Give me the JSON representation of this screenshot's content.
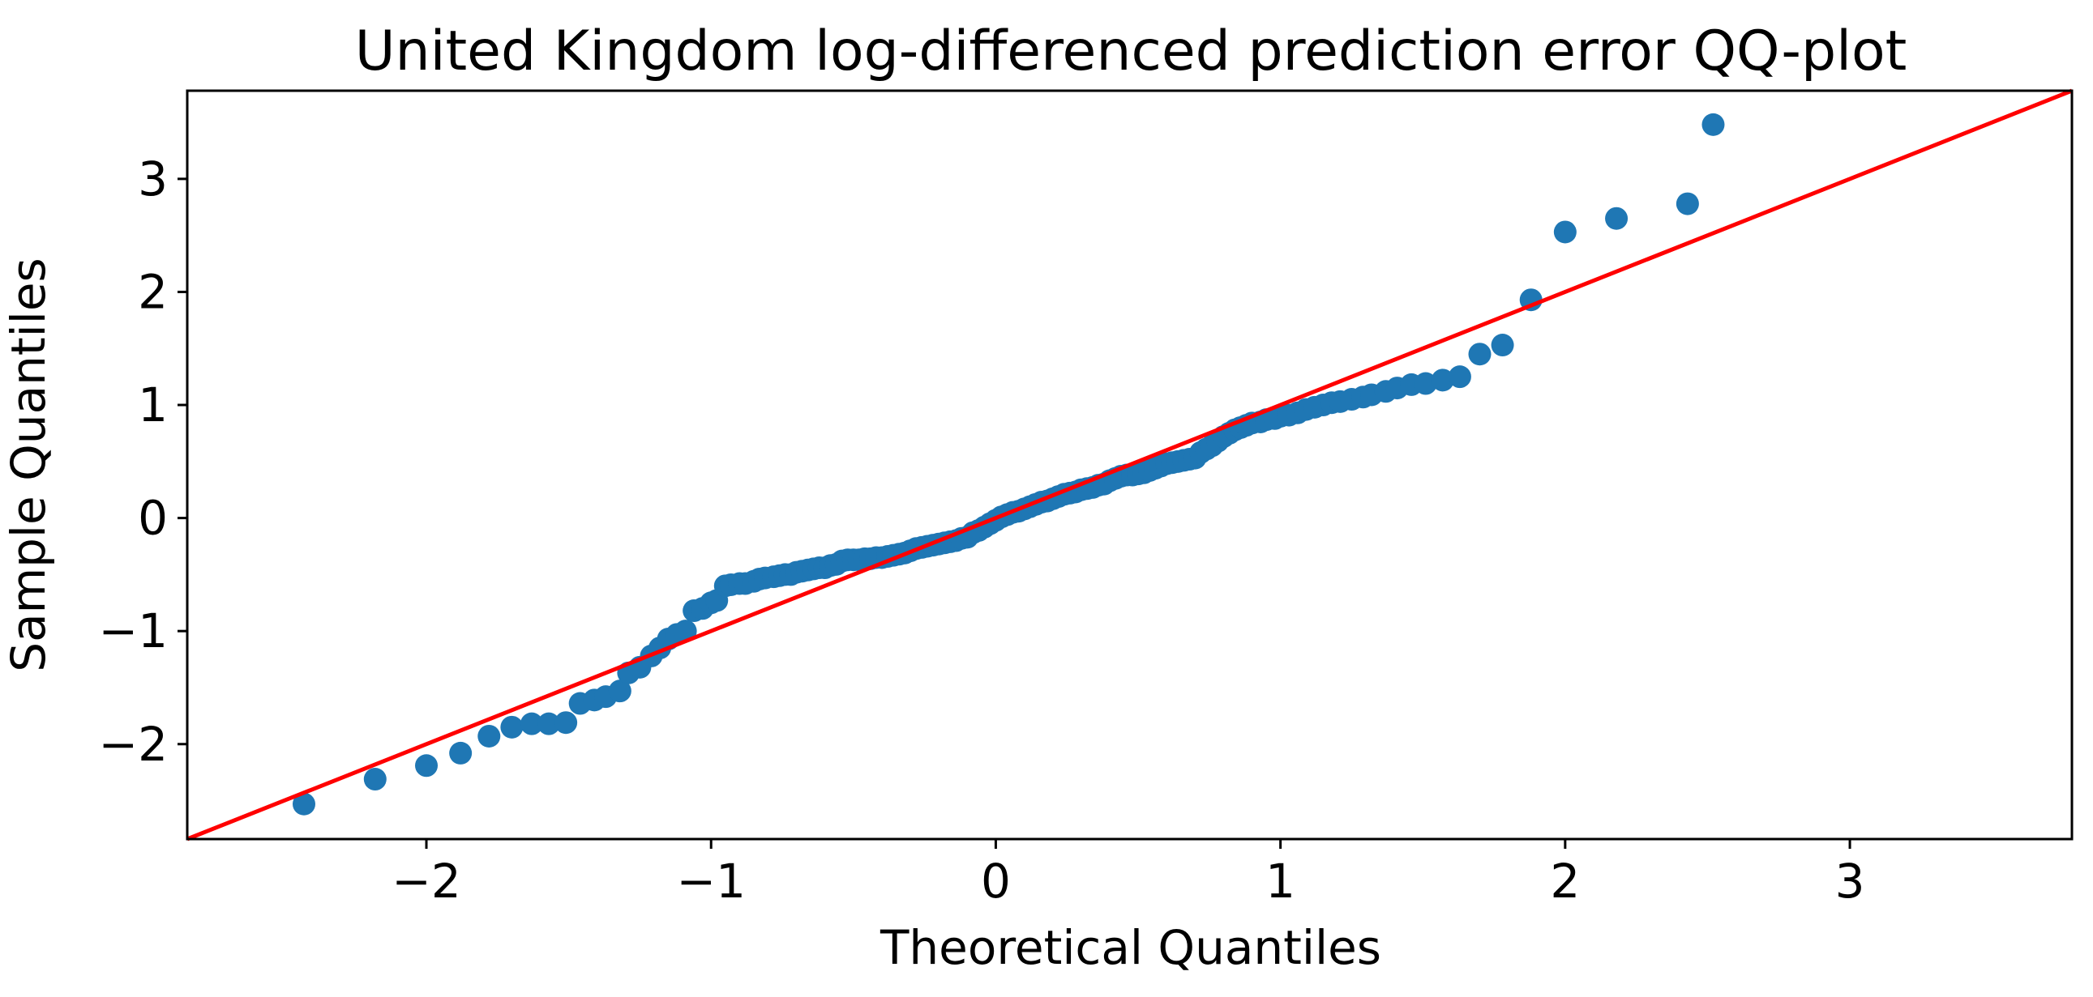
{
  "chart_data": {
    "type": "scatter",
    "title": "United Kingdom log-differenced prediction error QQ-plot",
    "xlabel": "Theoretical Quantiles",
    "ylabel": "Sample Quantiles",
    "xlim": [
      -2.84,
      3.78
    ],
    "ylim": [
      -2.84,
      3.78
    ],
    "xticks": [
      -2,
      -1,
      0,
      1,
      2,
      3
    ],
    "yticks": [
      -2,
      -1,
      0,
      1,
      2,
      3
    ],
    "xtick_labels": [
      "−2",
      "−1",
      "0",
      "1",
      "2",
      "3"
    ],
    "ytick_labels": [
      "−2",
      "−1",
      "0",
      "1",
      "2",
      "3"
    ],
    "grid": false,
    "colors": {
      "points": "#1f77b4",
      "reference_line": "#ff0000",
      "axes": "#000000"
    },
    "reference_line": {
      "slope": 1,
      "intercept": 0
    },
    "points": [
      [
        -2.43,
        -2.53
      ],
      [
        -2.18,
        -2.31
      ],
      [
        -2.0,
        -2.19
      ],
      [
        -1.88,
        -2.08
      ],
      [
        -1.78,
        -1.93
      ],
      [
        -1.7,
        -1.85
      ],
      [
        -1.63,
        -1.82
      ],
      [
        -1.57,
        -1.82
      ],
      [
        -1.51,
        -1.81
      ],
      [
        -1.46,
        -1.64
      ],
      [
        -1.41,
        -1.61
      ],
      [
        -1.37,
        -1.58
      ],
      [
        -1.32,
        -1.53
      ],
      [
        -1.29,
        -1.37
      ],
      [
        -1.25,
        -1.32
      ],
      [
        -1.21,
        -1.22
      ],
      [
        -1.18,
        -1.15
      ],
      [
        -1.15,
        -1.07
      ],
      [
        -1.12,
        -1.03
      ],
      [
        -1.09,
        -1.0
      ],
      [
        -1.06,
        -0.82
      ],
      [
        -1.03,
        -0.8
      ],
      [
        -1.0,
        -0.75
      ],
      [
        -0.98,
        -0.73
      ],
      [
        -0.95,
        -0.6
      ],
      [
        -0.93,
        -0.59
      ],
      [
        -0.9,
        -0.58
      ],
      [
        -0.88,
        -0.58
      ],
      [
        -0.85,
        -0.56
      ],
      [
        -0.83,
        -0.54
      ],
      [
        -0.81,
        -0.53
      ],
      [
        -0.78,
        -0.52
      ],
      [
        -0.76,
        -0.51
      ],
      [
        -0.74,
        -0.5
      ],
      [
        -0.72,
        -0.5
      ],
      [
        -0.7,
        -0.48
      ],
      [
        -0.68,
        -0.47
      ],
      [
        -0.66,
        -0.46
      ],
      [
        -0.64,
        -0.45
      ],
      [
        -0.62,
        -0.44
      ],
      [
        -0.6,
        -0.44
      ],
      [
        -0.58,
        -0.42
      ],
      [
        -0.56,
        -0.41
      ],
      [
        -0.54,
        -0.38
      ],
      [
        -0.52,
        -0.37
      ],
      [
        -0.5,
        -0.37
      ],
      [
        -0.48,
        -0.37
      ],
      [
        -0.46,
        -0.36
      ],
      [
        -0.44,
        -0.36
      ],
      [
        -0.42,
        -0.35
      ],
      [
        -0.4,
        -0.35
      ],
      [
        -0.38,
        -0.34
      ],
      [
        -0.36,
        -0.33
      ],
      [
        -0.34,
        -0.32
      ],
      [
        -0.32,
        -0.31
      ],
      [
        -0.3,
        -0.29
      ],
      [
        -0.28,
        -0.27
      ],
      [
        -0.26,
        -0.26
      ],
      [
        -0.24,
        -0.25
      ],
      [
        -0.22,
        -0.24
      ],
      [
        -0.2,
        -0.23
      ],
      [
        -0.18,
        -0.22
      ],
      [
        -0.16,
        -0.21
      ],
      [
        -0.14,
        -0.2
      ],
      [
        -0.12,
        -0.18
      ],
      [
        -0.1,
        -0.17
      ],
      [
        -0.08,
        -0.13
      ],
      [
        -0.06,
        -0.11
      ],
      [
        -0.04,
        -0.08
      ],
      [
        -0.02,
        -0.05
      ],
      [
        0.0,
        -0.02
      ],
      [
        0.02,
        0.01
      ],
      [
        0.04,
        0.03
      ],
      [
        0.06,
        0.05
      ],
      [
        0.08,
        0.06
      ],
      [
        0.1,
        0.08
      ],
      [
        0.12,
        0.1
      ],
      [
        0.14,
        0.12
      ],
      [
        0.16,
        0.14
      ],
      [
        0.18,
        0.15
      ],
      [
        0.2,
        0.17
      ],
      [
        0.22,
        0.19
      ],
      [
        0.24,
        0.21
      ],
      [
        0.26,
        0.22
      ],
      [
        0.28,
        0.23
      ],
      [
        0.3,
        0.25
      ],
      [
        0.32,
        0.26
      ],
      [
        0.34,
        0.27
      ],
      [
        0.36,
        0.29
      ],
      [
        0.38,
        0.3
      ],
      [
        0.4,
        0.33
      ],
      [
        0.42,
        0.35
      ],
      [
        0.44,
        0.37
      ],
      [
        0.46,
        0.38
      ],
      [
        0.48,
        0.38
      ],
      [
        0.5,
        0.39
      ],
      [
        0.52,
        0.4
      ],
      [
        0.54,
        0.42
      ],
      [
        0.56,
        0.44
      ],
      [
        0.58,
        0.46
      ],
      [
        0.6,
        0.48
      ],
      [
        0.62,
        0.49
      ],
      [
        0.64,
        0.5
      ],
      [
        0.66,
        0.51
      ],
      [
        0.68,
        0.52
      ],
      [
        0.7,
        0.53
      ],
      [
        0.72,
        0.58
      ],
      [
        0.74,
        0.61
      ],
      [
        0.76,
        0.64
      ],
      [
        0.78,
        0.68
      ],
      [
        0.8,
        0.72
      ],
      [
        0.82,
        0.75
      ],
      [
        0.84,
        0.78
      ],
      [
        0.86,
        0.8
      ],
      [
        0.88,
        0.82
      ],
      [
        0.9,
        0.84
      ],
      [
        0.93,
        0.85
      ],
      [
        0.95,
        0.87
      ],
      [
        0.98,
        0.88
      ],
      [
        1.0,
        0.9
      ],
      [
        1.03,
        0.91
      ],
      [
        1.06,
        0.93
      ],
      [
        1.09,
        0.96
      ],
      [
        1.12,
        0.98
      ],
      [
        1.15,
        1.0
      ],
      [
        1.18,
        1.02
      ],
      [
        1.21,
        1.03
      ],
      [
        1.25,
        1.05
      ],
      [
        1.29,
        1.07
      ],
      [
        1.32,
        1.09
      ],
      [
        1.37,
        1.12
      ],
      [
        1.41,
        1.15
      ],
      [
        1.46,
        1.18
      ],
      [
        1.51,
        1.19
      ],
      [
        1.57,
        1.22
      ],
      [
        1.63,
        1.25
      ],
      [
        1.7,
        1.45
      ],
      [
        1.78,
        1.53
      ],
      [
        1.88,
        1.93
      ],
      [
        2.0,
        2.53
      ],
      [
        2.18,
        2.65
      ],
      [
        2.43,
        2.78
      ],
      [
        2.52,
        3.48
      ]
    ]
  }
}
